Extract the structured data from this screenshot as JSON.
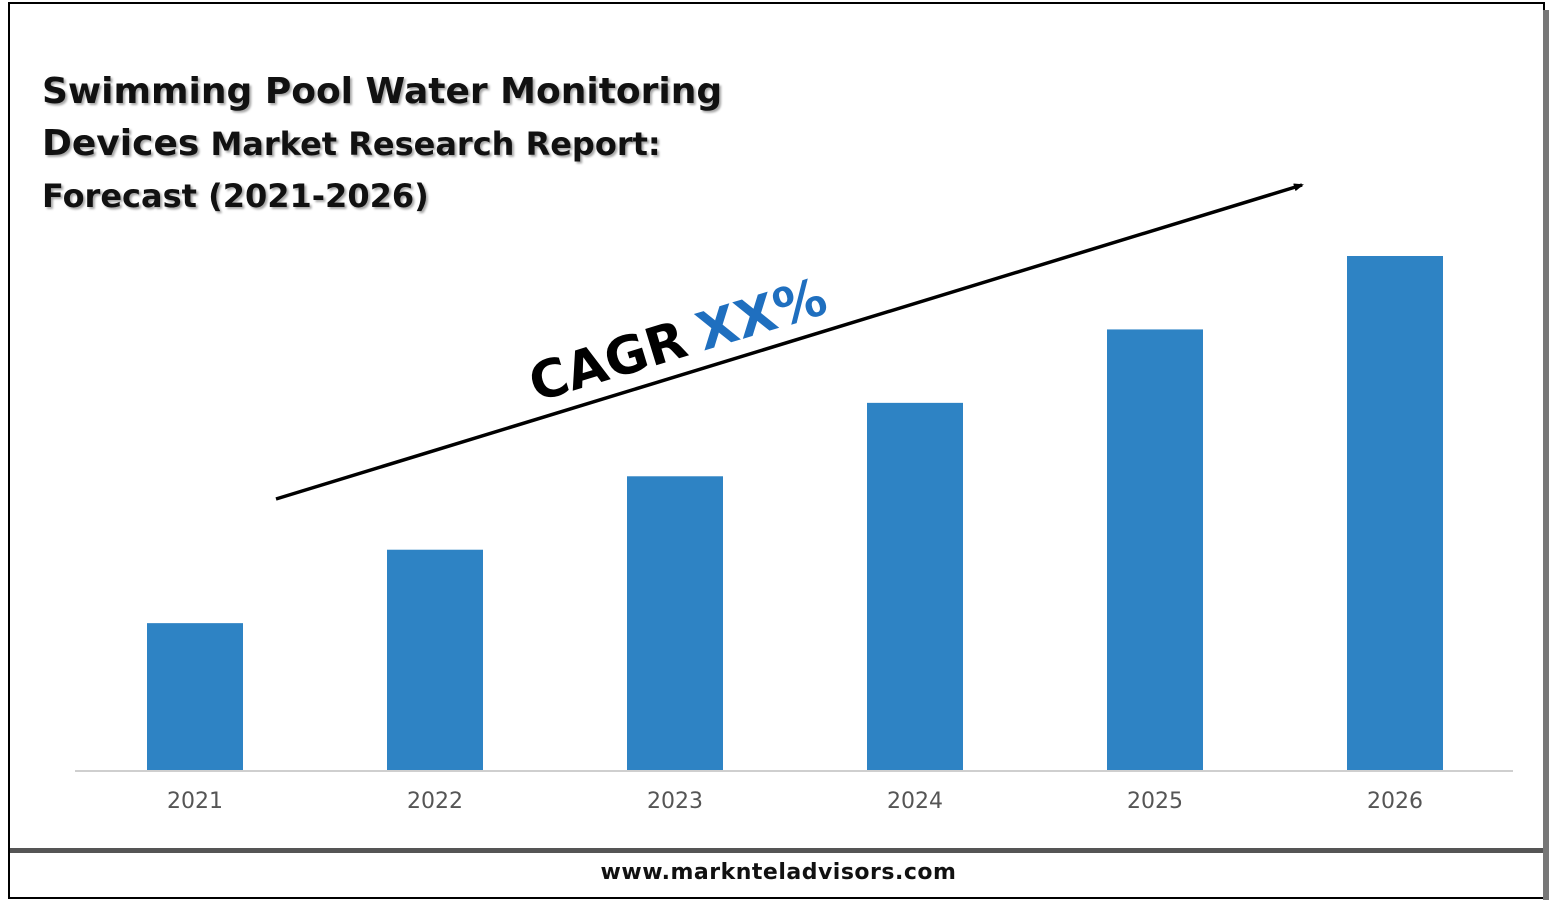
{
  "title": {
    "line1": "Swimming Pool Water Monitoring",
    "line2_big": "Devices",
    "line2_rest": " Market Research Report:",
    "line3": "Forecast (2021-2026)"
  },
  "annotation": {
    "cagr_label": "CAGR",
    "cagr_value": "XX%",
    "label_color": "#000000",
    "value_color": "#1f6fbf"
  },
  "footer": {
    "url": "www.marknteladvisors.com"
  },
  "chart_data": {
    "type": "bar",
    "categories": [
      "2021",
      "2022",
      "2023",
      "2024",
      "2025",
      "2026"
    ],
    "values": [
      1.0,
      1.5,
      2.0,
      2.5,
      3.0,
      3.5
    ],
    "bar_color": "#2e83c4",
    "ylim": [
      0,
      3.5
    ],
    "grid": false,
    "xlabel": "",
    "ylabel": ""
  }
}
